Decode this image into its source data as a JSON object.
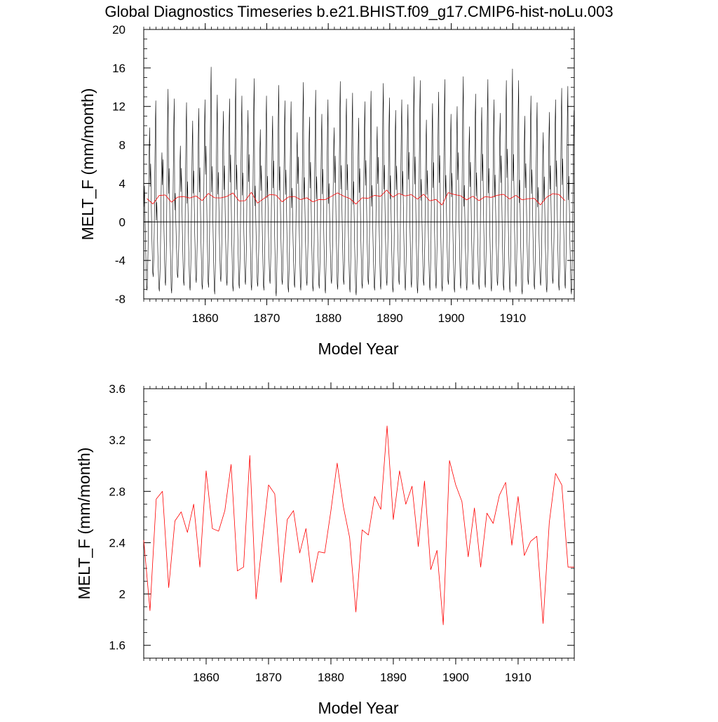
{
  "page_title": "Global Diagnostics Timeseries b.e21.BHIST.f09_g17.CMIP6-hist-noLu.003",
  "colors": {
    "monthly_series": "#000000",
    "annual_series": "#ff0000",
    "axes": "#000000",
    "background": "#ffffff"
  },
  "chart_data": [
    {
      "type": "line",
      "title": "Global Diagnostics Timeseries b.e21.BHIST.f09_g17.CMIP6-hist-noLu.003",
      "xlabel": "Model Year",
      "ylabel": "MELT_F (mm/month)",
      "xlim": [
        1850,
        1920
      ],
      "ylim": [
        -8,
        20
      ],
      "x_ticks": [
        1860,
        1870,
        1880,
        1890,
        1900,
        1910
      ],
      "y_ticks": [
        -8,
        -4,
        0,
        4,
        8,
        12,
        16,
        20
      ],
      "reference_line_y": 0,
      "series": [
        {
          "kind": "monthly",
          "color": "#000000",
          "start_year": 1850,
          "seasonal_cycle": [
            3.0,
            5.5,
            2.0,
            -1.5,
            -4.0,
            -6.5,
            -7.0,
            -5.0,
            -2.0,
            4.5,
            9.5,
            12.5
          ],
          "annual_peaks": [
            9.8,
            12.6,
            7.2,
            13.8,
            12.8,
            7.9,
            12.4,
            10.5,
            11.8,
            12.7,
            16.1,
            13.2,
            11.5,
            12.8,
            14.9,
            13.1,
            11.6,
            14.9,
            9.6,
            13.1,
            11.0,
            14.2,
            12.6,
            12.5,
            9.3,
            14.5,
            10.9,
            13.7,
            11.2,
            12.7,
            9.8,
            14.6,
            12.8,
            13.4,
            10.8,
            12.5,
            13.6,
            9.9,
            14.4,
            12.9,
            11.6,
            12.7,
            12.2,
            15.1,
            14.7,
            10.6,
            12.3,
            13.5,
            14.8,
            11.2,
            12.0,
            15.1,
            9.9,
            13.3,
            11.9,
            14.8,
            12.7,
            11.3,
            14.7,
            15.9,
            14.7,
            11.0,
            13.1,
            12.4,
            9.3,
            11.4,
            12.7,
            13.9,
            14.1,
            11.6
          ],
          "annual_troughs": [
            -7.1,
            -5.7,
            -7.2,
            -6.6,
            -7.4,
            -5.8,
            -6.6,
            -7.1,
            -6.3,
            -7.0,
            -6.8,
            -7.5,
            -6.2,
            -6.6,
            -7.2,
            -6.9,
            -6.5,
            -7.1,
            -6.7,
            -7.1,
            -6.4,
            -7.7,
            -6.5,
            -7.3,
            -6.8,
            -7.1,
            -6.6,
            -7.2,
            -6.9,
            -7.4,
            -6.4,
            -7.0,
            -6.5,
            -7.3,
            -7.6,
            -6.9,
            -6.5,
            -7.1,
            -7.0,
            -6.6,
            -7.3,
            -6.5,
            -7.1,
            -6.8,
            -7.4,
            -6.6,
            -7.1,
            -6.9,
            -7.2,
            -6.5,
            -7.3,
            -6.9,
            -7.1,
            -6.5,
            -7.0,
            -6.8,
            -7.2,
            -6.6,
            -7.1,
            -7.3,
            -6.7,
            -7.5,
            -6.5,
            -7.0,
            -6.6,
            -7.3,
            -6.4,
            -7.1,
            -6.9,
            -7.5
          ]
        },
        {
          "kind": "annual",
          "color": "#ff0000",
          "x": [
            1850.5,
            1851.5,
            1852.5,
            1853.5,
            1854.5,
            1855.5,
            1856.5,
            1857.5,
            1858.5,
            1859.5,
            1860.5,
            1861.5,
            1862.5,
            1863.5,
            1864.5,
            1865.5,
            1866.5,
            1867.5,
            1868.5,
            1869.5,
            1870.5,
            1871.5,
            1872.5,
            1873.5,
            1874.5,
            1875.5,
            1876.5,
            1877.5,
            1878.5,
            1879.5,
            1880.5,
            1881.5,
            1882.5,
            1883.5,
            1884.5,
            1885.5,
            1886.5,
            1887.5,
            1888.5,
            1889.5,
            1890.5,
            1891.5,
            1892.5,
            1893.5,
            1894.5,
            1895.5,
            1896.5,
            1897.5,
            1898.5,
            1899.5,
            1900.5,
            1901.5,
            1902.5,
            1903.5,
            1904.5,
            1905.5,
            1906.5,
            1907.5,
            1908.5,
            1909.5,
            1910.5,
            1911.5,
            1912.5,
            1913.5,
            1914.5,
            1915.5,
            1916.5,
            1917.5,
            1918.5
          ],
          "values": [
            2.42,
            1.87,
            2.74,
            2.8,
            2.05,
            2.57,
            2.64,
            2.48,
            2.7,
            2.21,
            2.96,
            2.51,
            2.49,
            2.65,
            3.01,
            2.18,
            2.21,
            3.08,
            1.96,
            2.41,
            2.85,
            2.78,
            2.09,
            2.58,
            2.65,
            2.32,
            2.51,
            2.09,
            2.33,
            2.32,
            2.65,
            3.02,
            2.68,
            2.44,
            1.86,
            2.5,
            2.46,
            2.76,
            2.66,
            3.31,
            2.58,
            2.96,
            2.7,
            2.84,
            2.37,
            2.88,
            2.19,
            2.34,
            1.76,
            3.04,
            2.85,
            2.72,
            2.29,
            2.67,
            2.21,
            2.63,
            2.55,
            2.77,
            2.87,
            2.38,
            2.76,
            2.3,
            2.41,
            2.45,
            1.77,
            2.56,
            2.94,
            2.85,
            2.21
          ]
        }
      ]
    },
    {
      "type": "line",
      "title": "",
      "xlabel": "Model Year",
      "ylabel": "MELT_F (mm/month)",
      "xlim": [
        1850,
        1919
      ],
      "ylim": [
        1.5,
        3.6
      ],
      "x_ticks": [
        1860,
        1870,
        1880,
        1890,
        1900,
        1910
      ],
      "y_ticks": [
        1.6,
        2.0,
        2.4,
        2.8,
        3.2,
        3.6
      ],
      "series": [
        {
          "kind": "annual",
          "color": "#ff0000",
          "x": [
            1850,
            1851,
            1852,
            1853,
            1854,
            1855,
            1856,
            1857,
            1858,
            1859,
            1860,
            1861,
            1862,
            1863,
            1864,
            1865,
            1866,
            1867,
            1868,
            1869,
            1870,
            1871,
            1872,
            1873,
            1874,
            1875,
            1876,
            1877,
            1878,
            1879,
            1880,
            1881,
            1882,
            1883,
            1884,
            1885,
            1886,
            1887,
            1888,
            1889,
            1890,
            1891,
            1892,
            1893,
            1894,
            1895,
            1896,
            1897,
            1898,
            1899,
            1900,
            1901,
            1902,
            1903,
            1904,
            1905,
            1906,
            1907,
            1908,
            1909,
            1910,
            1911,
            1912,
            1913,
            1914,
            1915,
            1916,
            1917,
            1918,
            1919
          ],
          "values": [
            2.42,
            1.87,
            2.74,
            2.8,
            2.05,
            2.57,
            2.64,
            2.48,
            2.7,
            2.21,
            2.96,
            2.51,
            2.49,
            2.65,
            3.01,
            2.18,
            2.21,
            3.08,
            1.96,
            2.41,
            2.85,
            2.78,
            2.09,
            2.58,
            2.65,
            2.32,
            2.51,
            2.09,
            2.33,
            2.32,
            2.65,
            3.02,
            2.68,
            2.44,
            1.86,
            2.5,
            2.46,
            2.76,
            2.66,
            3.31,
            2.58,
            2.96,
            2.7,
            2.84,
            2.37,
            2.88,
            2.19,
            2.34,
            1.76,
            3.04,
            2.85,
            2.72,
            2.29,
            2.67,
            2.21,
            2.63,
            2.55,
            2.77,
            2.87,
            2.38,
            2.76,
            2.3,
            2.41,
            2.45,
            1.77,
            2.56,
            2.94,
            2.85,
            2.21,
            2.21
          ]
        }
      ]
    }
  ]
}
